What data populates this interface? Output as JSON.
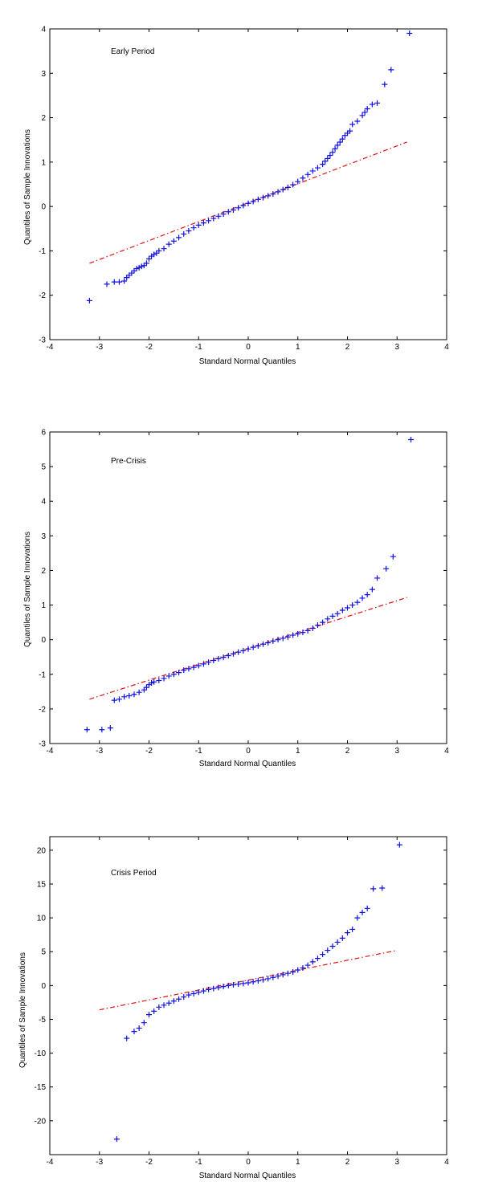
{
  "style": {
    "marker_color": "#1010dd",
    "fit_color": "#dd1111",
    "axis_color": "#000000"
  },
  "chart_data": [
    {
      "type": "scatter",
      "annotation": "Early Period",
      "xlabel": "Standard Normal Quantiles",
      "ylabel": "Quantiles of Sample Innovations",
      "xlim": [
        -4,
        4
      ],
      "ylim": [
        -3,
        4
      ],
      "xticks": [
        -4,
        -3,
        -2,
        -1,
        0,
        1,
        2,
        3,
        4
      ],
      "yticks": [
        -3,
        -2,
        -1,
        0,
        1,
        2,
        3,
        4
      ],
      "grid": false,
      "fit_line": {
        "x": [
          -3.2,
          3.2
        ],
        "y": [
          -1.28,
          1.45
        ],
        "style": "dash-dot"
      },
      "series": [
        {
          "marker": "+",
          "points": [
            [
              -3.2,
              -2.12
            ],
            [
              -2.85,
              -1.75
            ],
            [
              -2.7,
              -1.7
            ],
            [
              -2.6,
              -1.7
            ],
            [
              -2.5,
              -1.68
            ],
            [
              -2.45,
              -1.6
            ],
            [
              -2.4,
              -1.55
            ],
            [
              -2.35,
              -1.5
            ],
            [
              -2.3,
              -1.45
            ],
            [
              -2.25,
              -1.4
            ],
            [
              -2.2,
              -1.38
            ],
            [
              -2.15,
              -1.35
            ],
            [
              -2.1,
              -1.33
            ],
            [
              -2.05,
              -1.28
            ],
            [
              -2.0,
              -1.18
            ],
            [
              -1.95,
              -1.12
            ],
            [
              -1.9,
              -1.08
            ],
            [
              -1.85,
              -1.05
            ],
            [
              -1.8,
              -1.0
            ],
            [
              -1.7,
              -0.95
            ],
            [
              -1.6,
              -0.85
            ],
            [
              -1.5,
              -0.78
            ],
            [
              -1.4,
              -0.7
            ],
            [
              -1.3,
              -0.62
            ],
            [
              -1.2,
              -0.55
            ],
            [
              -1.1,
              -0.48
            ],
            [
              -1.0,
              -0.42
            ],
            [
              -0.9,
              -0.37
            ],
            [
              -0.8,
              -0.32
            ],
            [
              -0.7,
              -0.27
            ],
            [
              -0.6,
              -0.22
            ],
            [
              -0.5,
              -0.17
            ],
            [
              -0.4,
              -0.12
            ],
            [
              -0.3,
              -0.08
            ],
            [
              -0.2,
              -0.03
            ],
            [
              -0.1,
              0.02
            ],
            [
              0.0,
              0.07
            ],
            [
              0.1,
              0.11
            ],
            [
              0.2,
              0.16
            ],
            [
              0.3,
              0.2
            ],
            [
              0.4,
              0.24
            ],
            [
              0.5,
              0.28
            ],
            [
              0.6,
              0.33
            ],
            [
              0.7,
              0.38
            ],
            [
              0.8,
              0.43
            ],
            [
              0.9,
              0.49
            ],
            [
              1.0,
              0.56
            ],
            [
              1.1,
              0.64
            ],
            [
              1.2,
              0.72
            ],
            [
              1.3,
              0.8
            ],
            [
              1.4,
              0.87
            ],
            [
              1.5,
              0.95
            ],
            [
              1.55,
              1.02
            ],
            [
              1.6,
              1.08
            ],
            [
              1.65,
              1.15
            ],
            [
              1.7,
              1.22
            ],
            [
              1.75,
              1.3
            ],
            [
              1.8,
              1.38
            ],
            [
              1.85,
              1.45
            ],
            [
              1.9,
              1.52
            ],
            [
              1.95,
              1.6
            ],
            [
              2.0,
              1.65
            ],
            [
              2.05,
              1.7
            ],
            [
              2.1,
              1.85
            ],
            [
              2.2,
              1.92
            ],
            [
              2.3,
              2.05
            ],
            [
              2.35,
              2.12
            ],
            [
              2.4,
              2.2
            ],
            [
              2.5,
              2.3
            ],
            [
              2.6,
              2.33
            ],
            [
              2.75,
              2.75
            ],
            [
              2.88,
              3.08
            ],
            [
              3.25,
              3.9
            ]
          ]
        }
      ]
    },
    {
      "type": "scatter",
      "annotation": "Pre-Crisis",
      "xlabel": "Standard Normal Quantiles",
      "ylabel": "Quantiles of Sample Innovations",
      "xlim": [
        -4,
        4
      ],
      "ylim": [
        -3,
        6
      ],
      "xticks": [
        -4,
        -3,
        -2,
        -1,
        0,
        1,
        2,
        3,
        4
      ],
      "yticks": [
        -3,
        -2,
        -1,
        0,
        1,
        2,
        3,
        4,
        5,
        6
      ],
      "grid": false,
      "fit_line": {
        "x": [
          -3.2,
          3.2
        ],
        "y": [
          -1.72,
          1.22
        ],
        "style": "dash-dot"
      },
      "series": [
        {
          "marker": "+",
          "points": [
            [
              -3.25,
              -2.6
            ],
            [
              -2.95,
              -2.6
            ],
            [
              -2.78,
              -2.55
            ],
            [
              -2.7,
              -1.75
            ],
            [
              -2.6,
              -1.72
            ],
            [
              -2.5,
              -1.65
            ],
            [
              -2.4,
              -1.62
            ],
            [
              -2.3,
              -1.58
            ],
            [
              -2.2,
              -1.52
            ],
            [
              -2.1,
              -1.45
            ],
            [
              -2.05,
              -1.38
            ],
            [
              -2.0,
              -1.3
            ],
            [
              -1.95,
              -1.25
            ],
            [
              -1.9,
              -1.22
            ],
            [
              -1.8,
              -1.18
            ],
            [
              -1.7,
              -1.12
            ],
            [
              -1.6,
              -1.05
            ],
            [
              -1.5,
              -1.0
            ],
            [
              -1.4,
              -0.95
            ],
            [
              -1.3,
              -0.88
            ],
            [
              -1.2,
              -0.84
            ],
            [
              -1.1,
              -0.8
            ],
            [
              -1.0,
              -0.75
            ],
            [
              -0.9,
              -0.7
            ],
            [
              -0.8,
              -0.65
            ],
            [
              -0.7,
              -0.6
            ],
            [
              -0.6,
              -0.55
            ],
            [
              -0.5,
              -0.51
            ],
            [
              -0.4,
              -0.46
            ],
            [
              -0.3,
              -0.41
            ],
            [
              -0.2,
              -0.36
            ],
            [
              -0.1,
              -0.32
            ],
            [
              0.0,
              -0.27
            ],
            [
              0.1,
              -0.22
            ],
            [
              0.2,
              -0.18
            ],
            [
              0.3,
              -0.13
            ],
            [
              0.4,
              -0.09
            ],
            [
              0.5,
              -0.04
            ],
            [
              0.6,
              0.0
            ],
            [
              0.7,
              0.04
            ],
            [
              0.8,
              0.08
            ],
            [
              0.9,
              0.13
            ],
            [
              1.0,
              0.17
            ],
            [
              1.1,
              0.21
            ],
            [
              1.2,
              0.26
            ],
            [
              1.3,
              0.33
            ],
            [
              1.4,
              0.42
            ],
            [
              1.5,
              0.5
            ],
            [
              1.6,
              0.6
            ],
            [
              1.7,
              0.68
            ],
            [
              1.8,
              0.75
            ],
            [
              1.9,
              0.85
            ],
            [
              2.0,
              0.92
            ],
            [
              2.1,
              1.0
            ],
            [
              2.2,
              1.08
            ],
            [
              2.3,
              1.2
            ],
            [
              2.4,
              1.3
            ],
            [
              2.5,
              1.45
            ],
            [
              2.6,
              1.78
            ],
            [
              2.78,
              2.05
            ],
            [
              2.92,
              2.4
            ],
            [
              3.28,
              5.78
            ]
          ]
        }
      ]
    },
    {
      "type": "scatter",
      "annotation": "Crisis Period",
      "xlabel": "Standard Normal Quantiles",
      "ylabel": "Quantiles of Sample Innovations",
      "xlim": [
        -4,
        4
      ],
      "ylim": [
        -25,
        22
      ],
      "xticks": [
        -4,
        -3,
        -2,
        -1,
        0,
        1,
        2,
        3,
        4
      ],
      "yticks": [
        -20,
        -15,
        -10,
        -5,
        0,
        5,
        10,
        15,
        20
      ],
      "grid": false,
      "fit_line": {
        "x": [
          -3.0,
          3.0
        ],
        "y": [
          -3.6,
          5.2
        ],
        "style": "dash-dot"
      },
      "series": [
        {
          "marker": "+",
          "points": [
            [
              -2.65,
              -22.7
            ],
            [
              -2.45,
              -7.8
            ],
            [
              -2.3,
              -6.8
            ],
            [
              -2.2,
              -6.3
            ],
            [
              -2.1,
              -5.5
            ],
            [
              -2.0,
              -4.3
            ],
            [
              -1.9,
              -3.8
            ],
            [
              -1.8,
              -3.2
            ],
            [
              -1.7,
              -2.9
            ],
            [
              -1.6,
              -2.6
            ],
            [
              -1.5,
              -2.3
            ],
            [
              -1.4,
              -2.0
            ],
            [
              -1.3,
              -1.7
            ],
            [
              -1.2,
              -1.4
            ],
            [
              -1.1,
              -1.2
            ],
            [
              -1.0,
              -1.0
            ],
            [
              -0.9,
              -0.8
            ],
            [
              -0.8,
              -0.6
            ],
            [
              -0.7,
              -0.45
            ],
            [
              -0.6,
              -0.3
            ],
            [
              -0.5,
              -0.15
            ],
            [
              -0.4,
              0.0
            ],
            [
              -0.3,
              0.1
            ],
            [
              -0.2,
              0.2
            ],
            [
              -0.1,
              0.3
            ],
            [
              0.0,
              0.4
            ],
            [
              0.1,
              0.55
            ],
            [
              0.2,
              0.7
            ],
            [
              0.3,
              0.85
            ],
            [
              0.4,
              1.0
            ],
            [
              0.5,
              1.2
            ],
            [
              0.6,
              1.4
            ],
            [
              0.7,
              1.6
            ],
            [
              0.8,
              1.8
            ],
            [
              0.9,
              2.0
            ],
            [
              1.0,
              2.3
            ],
            [
              1.1,
              2.6
            ],
            [
              1.2,
              3.0
            ],
            [
              1.3,
              3.5
            ],
            [
              1.4,
              4.0
            ],
            [
              1.5,
              4.6
            ],
            [
              1.6,
              5.2
            ],
            [
              1.7,
              5.8
            ],
            [
              1.8,
              6.4
            ],
            [
              1.9,
              7.0
            ],
            [
              2.0,
              7.8
            ],
            [
              2.1,
              8.3
            ],
            [
              2.2,
              10.0
            ],
            [
              2.3,
              10.8
            ],
            [
              2.4,
              11.4
            ],
            [
              2.52,
              14.3
            ],
            [
              2.7,
              14.4
            ],
            [
              3.05,
              20.8
            ]
          ]
        }
      ]
    }
  ]
}
